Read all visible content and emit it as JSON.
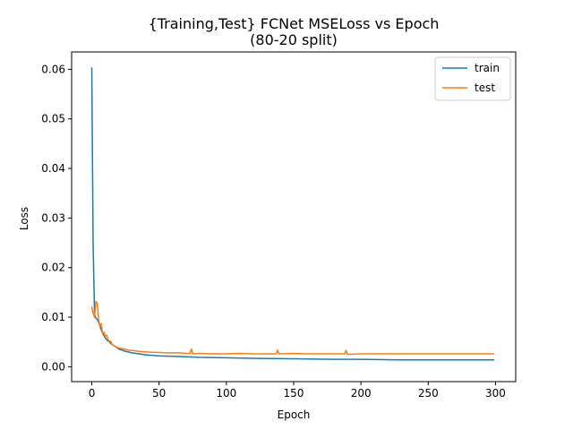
{
  "chart_data": {
    "type": "line",
    "title_line1": "{Training,Test} FCNet MSELoss vs Epoch",
    "title_line2": "(80-20 split)",
    "xlabel": "Epoch",
    "ylabel": "Loss",
    "xlim": [
      -15,
      315
    ],
    "ylim": [
      -0.003,
      0.0635
    ],
    "xticks": [
      0,
      50,
      100,
      150,
      200,
      250,
      300
    ],
    "yticks": [
      0.0,
      0.01,
      0.02,
      0.03,
      0.04,
      0.05,
      0.06
    ],
    "ytick_labels": [
      "0.00",
      "0.01",
      "0.02",
      "0.03",
      "0.04",
      "0.05",
      "0.06"
    ],
    "grid": false,
    "legend_position": "top-right",
    "series": [
      {
        "name": "train",
        "color": "#1f77b4",
        "x": [
          0,
          1,
          2,
          3,
          4,
          5,
          6,
          7,
          8,
          10,
          12,
          15,
          18,
          20,
          25,
          30,
          35,
          40,
          50,
          60,
          70,
          80,
          100,
          120,
          150,
          180,
          200,
          230,
          250,
          270,
          299
        ],
        "y": [
          0.0604,
          0.025,
          0.0105,
          0.0098,
          0.0096,
          0.009,
          0.0082,
          0.0074,
          0.0068,
          0.0058,
          0.0052,
          0.0045,
          0.004,
          0.0036,
          0.0031,
          0.0028,
          0.0026,
          0.0024,
          0.0022,
          0.0021,
          0.002,
          0.0019,
          0.0018,
          0.0017,
          0.0016,
          0.0015,
          0.0015,
          0.0014,
          0.0014,
          0.0014,
          0.0014
        ]
      },
      {
        "name": "test",
        "color": "#ff7f0e",
        "x": [
          0,
          1,
          2,
          3,
          4,
          5,
          6,
          7,
          8,
          9,
          10,
          11,
          12,
          13,
          14,
          15,
          17,
          20,
          22,
          25,
          28,
          30,
          35,
          40,
          45,
          50,
          55,
          60,
          65,
          70,
          73,
          74,
          75,
          80,
          90,
          100,
          110,
          120,
          130,
          137,
          138,
          139,
          150,
          160,
          170,
          180,
          188,
          189,
          190,
          200,
          210,
          220,
          230,
          240,
          250,
          260,
          270,
          280,
          290,
          299
        ],
        "y": [
          0.0121,
          0.0108,
          0.01,
          0.0132,
          0.0128,
          0.0095,
          0.0082,
          0.0087,
          0.0066,
          0.007,
          0.0061,
          0.0064,
          0.0056,
          0.005,
          0.0052,
          0.0045,
          0.0042,
          0.0038,
          0.0037,
          0.0035,
          0.0033,
          0.0033,
          0.0031,
          0.003,
          0.0029,
          0.0029,
          0.0028,
          0.0028,
          0.0028,
          0.0027,
          0.0027,
          0.0036,
          0.0026,
          0.0027,
          0.0026,
          0.0026,
          0.0027,
          0.0026,
          0.0026,
          0.0026,
          0.0034,
          0.0026,
          0.0027,
          0.0026,
          0.0026,
          0.0026,
          0.0026,
          0.0033,
          0.0025,
          0.0026,
          0.0026,
          0.0026,
          0.0026,
          0.0026,
          0.0026,
          0.0026,
          0.0026,
          0.0026,
          0.0026,
          0.0026
        ]
      }
    ]
  }
}
